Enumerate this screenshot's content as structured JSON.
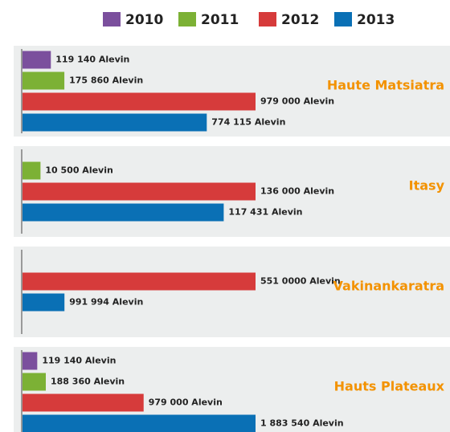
{
  "chart_data": {
    "type": "bar",
    "orientation": "horizontal",
    "categories": [
      "Haute Matsiatra",
      "Itasy",
      "Vakinankaratra",
      "Hauts Plateaux"
    ],
    "series": [
      {
        "name": "2010",
        "color": "#7b4f9d",
        "values": [
          119140,
          null,
          null,
          119140
        ],
        "value_labels": [
          "119 140 Alevin",
          null,
          null,
          "119 140 Alevin"
        ]
      },
      {
        "name": "2011",
        "color": "#7cb135",
        "values": [
          175860,
          10500,
          null,
          188360
        ],
        "value_labels": [
          "175 860 Alevin",
          "10 500 Alevin",
          null,
          "188 360 Alevin"
        ]
      },
      {
        "name": "2012",
        "color": "#d63b3b",
        "values": [
          979000,
          136000,
          5510000,
          979000
        ],
        "value_labels": [
          "979 000 Alevin",
          "136 000 Alevin",
          "551 0000 Alevin",
          "979 000 Alevin"
        ]
      },
      {
        "name": "2013",
        "color": "#0a70b5",
        "values": [
          774115,
          117431,
          991994,
          1883540
        ],
        "value_labels": [
          "774 115 Alevin",
          "117 431 Alevin",
          "991 994 Alevin",
          "1 883 540 Alevin"
        ]
      }
    ]
  }
}
